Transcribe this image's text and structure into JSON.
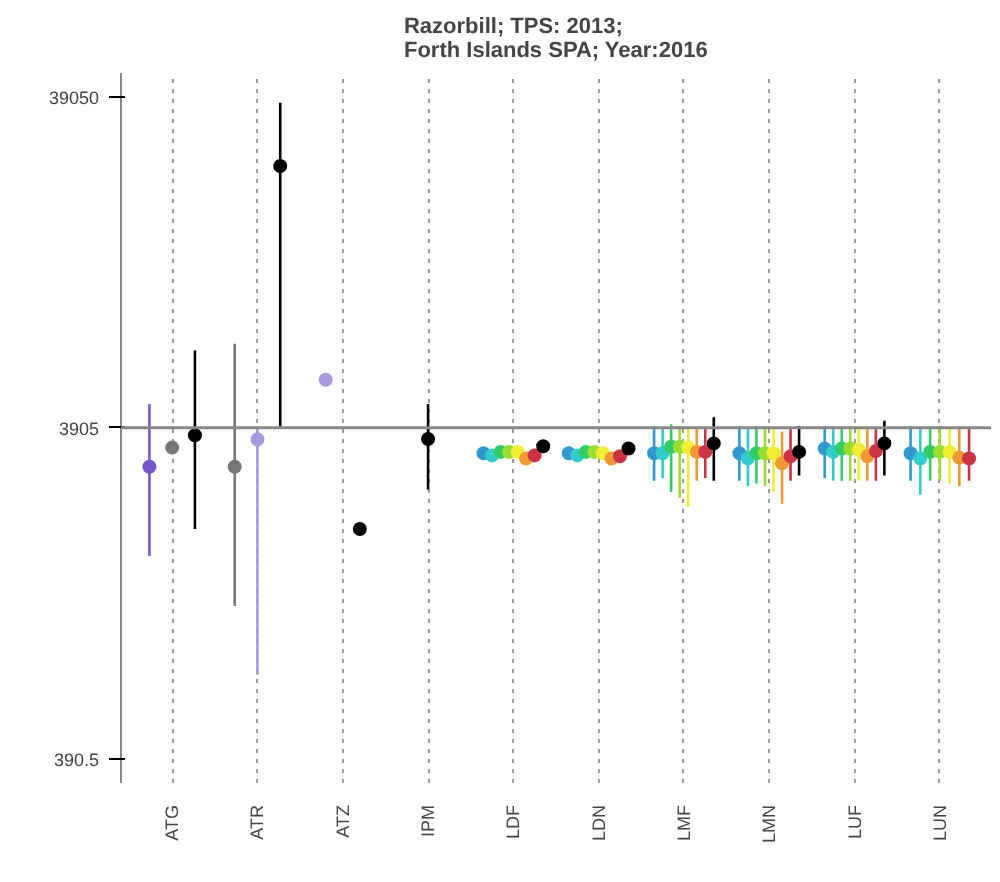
{
  "chart_data": {
    "type": "scatter",
    "title": "Razorbill; TPS: 2013;\nForth Islands SPA; Year:2016",
    "categories": [
      "ATG",
      "ATR",
      "ATZ",
      "IPM",
      "LDF",
      "LDN",
      "LMF",
      "LMN",
      "LUF",
      "LUN"
    ],
    "log": "y",
    "ylim": [
      330,
      46000
    ],
    "yticks": [
      390.5,
      3905,
      39050
    ],
    "grid": "x",
    "marker": "circle",
    "ref_lines": [
      {
        "axis": "y",
        "value": 3905,
        "color": "#888888"
      }
    ],
    "series": [
      {
        "color": "#7755cc",
        "values": [
          2975,
          null,
          null,
          null,
          null,
          null,
          null,
          null,
          null,
          null
        ],
        "errors": [
          [
            1600,
            4600
          ],
          null,
          null,
          null,
          null,
          null,
          null,
          null,
          null,
          null
        ]
      },
      {
        "color": "#777777",
        "values": [
          3400,
          2975,
          null,
          null,
          null,
          null,
          null,
          null,
          null,
          null
        ],
        "errors": [
          null,
          [
            1130,
            7000
          ],
          null,
          null,
          null,
          null,
          null,
          null,
          null,
          null
        ]
      },
      {
        "color": "#aa99dd",
        "values": [
          null,
          3600,
          5450,
          null,
          null,
          null,
          null,
          null,
          null,
          null
        ],
        "errors": [
          null,
          [
            700,
            3905
          ],
          null,
          null,
          null,
          null,
          null,
          null,
          null,
          null
        ]
      },
      {
        "color": "#3399cc",
        "values": [
          null,
          null,
          null,
          null,
          3270,
          3270,
          3270,
          3270,
          3380,
          3270
        ],
        "errors": [
          null,
          null,
          null,
          null,
          null,
          null,
          [
            2700,
            3950
          ],
          [
            2700,
            3950
          ],
          [
            2750,
            3950
          ],
          [
            2700,
            3950
          ]
        ]
      },
      {
        "color": "#33cccc",
        "values": [
          null,
          null,
          null,
          null,
          3220,
          3220,
          3270,
          3150,
          3300,
          3150
        ],
        "errors": [
          null,
          null,
          null,
          null,
          null,
          null,
          [
            2750,
            3900
          ],
          [
            2600,
            3900
          ],
          [
            2700,
            3900
          ],
          [
            2450,
            3900
          ]
        ]
      },
      {
        "color": "#33cc66",
        "values": [
          null,
          null,
          null,
          null,
          3300,
          3300,
          3420,
          3270,
          3380,
          3300
        ],
        "errors": [
          null,
          null,
          null,
          null,
          null,
          null,
          [
            2500,
            4000
          ],
          [
            2650,
            3950
          ],
          [
            2700,
            3950
          ],
          [
            2700,
            3950
          ]
        ]
      },
      {
        "color": "#99dd33",
        "values": [
          null,
          null,
          null,
          null,
          3300,
          3300,
          3420,
          3270,
          3380,
          3300
        ],
        "errors": [
          null,
          null,
          null,
          null,
          null,
          null,
          [
            2400,
            3950
          ],
          [
            2600,
            3950
          ],
          [
            2700,
            3950
          ],
          [
            2700,
            3950
          ]
        ]
      },
      {
        "color": "#eeee33",
        "values": [
          null,
          null,
          null,
          null,
          3300,
          3270,
          3400,
          3270,
          3350,
          3300
        ],
        "errors": [
          null,
          null,
          null,
          null,
          null,
          null,
          [
            2250,
            3900
          ],
          [
            2500,
            3900
          ],
          [
            2700,
            3900
          ],
          [
            2650,
            3900
          ]
        ]
      },
      {
        "color": "#ee9933",
        "values": [
          null,
          null,
          null,
          null,
          3150,
          3150,
          3300,
          3050,
          3200,
          3170
        ],
        "errors": [
          null,
          null,
          null,
          null,
          null,
          null,
          [
            2700,
            3900
          ],
          [
            2300,
            3800
          ],
          [
            2700,
            3900
          ],
          [
            2600,
            3900
          ]
        ]
      },
      {
        "color": "#cc3344",
        "values": [
          null,
          null,
          null,
          null,
          3220,
          3200,
          3300,
          3200,
          3320,
          3150
        ],
        "errors": [
          null,
          null,
          null,
          null,
          null,
          null,
          [
            2750,
            3900
          ],
          [
            2700,
            3900
          ],
          [
            2700,
            3900
          ],
          [
            2700,
            3900
          ]
        ]
      },
      {
        "color": "#000000",
        "values": [
          3705,
          24100,
          1930,
          3610,
          3430,
          3380,
          3500,
          3300,
          3500,
          null
        ],
        "errors": [
          [
            1930,
            6680
          ],
          [
            3905,
            37400
          ],
          null,
          [
            2540,
            4600
          ],
          null,
          null,
          [
            2700,
            4200
          ],
          [
            2800,
            3950
          ],
          [
            2800,
            4100
          ],
          null
        ]
      }
    ]
  }
}
